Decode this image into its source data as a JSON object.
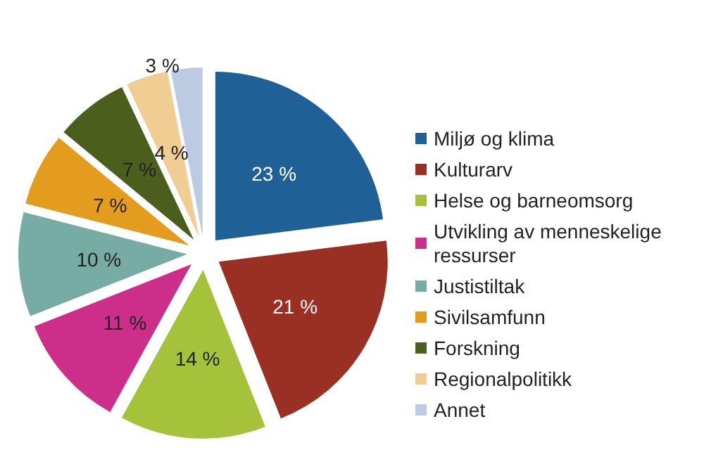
{
  "chart_data": {
    "type": "pie",
    "categories": [
      "Miljø og klima",
      "Kulturarv",
      "Helse og barneomsorg",
      "Utvikling av menneskelige ressurser",
      "Justistiltak",
      "Sivilsamfunn",
      "Forskning",
      "Regionalpolitikk",
      "Annet"
    ],
    "values": [
      23,
      21,
      14,
      11,
      10,
      7,
      7,
      4,
      3
    ],
    "colors": [
      "#1f6096",
      "#9a3024",
      "#a6c23a",
      "#cc2e8a",
      "#77aca5",
      "#e39c1e",
      "#4b5e1b",
      "#f0cd92",
      "#bccbe2"
    ],
    "value_labels": [
      "23 %",
      "21 %",
      "14 %",
      "11 %",
      "10 %",
      "7 %",
      "7 %",
      "4 %",
      "3 %"
    ],
    "legend": "right"
  }
}
